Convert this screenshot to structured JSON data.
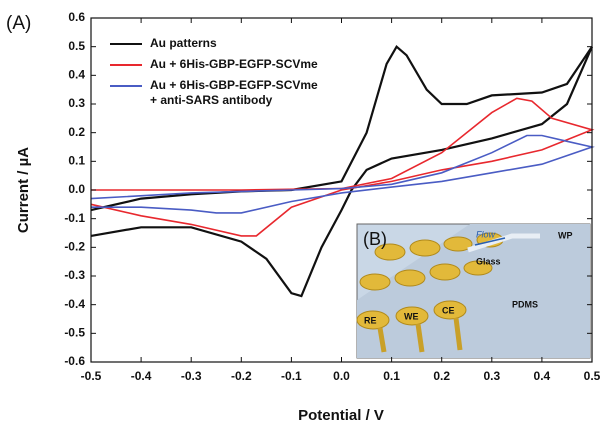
{
  "chart_data": {
    "type": "line",
    "panel_label": "(A)",
    "xlabel": "Potential / V",
    "ylabel": "Current / µA",
    "xlim": [
      -0.5,
      0.5
    ],
    "ylim": [
      -0.6,
      0.6
    ],
    "xticks": [
      -0.5,
      -0.4,
      -0.3,
      -0.2,
      -0.1,
      {
        "value": 0,
        "label": "0.0"
      },
      0.1,
      0.2,
      0.3,
      0.4,
      0.5
    ],
    "yticks": [
      -0.6,
      -0.5,
      -0.4,
      -0.3,
      -0.2,
      -0.1,
      {
        "value": 0,
        "label": "0.0"
      },
      0.1,
      0.2,
      0.3,
      0.4,
      0.5,
      0.6
    ],
    "legend": "upper-left",
    "series": [
      {
        "name": "Au patterns",
        "color": "#111111",
        "x": [
          -0.5,
          -0.4,
          -0.3,
          -0.2,
          -0.1,
          0.0,
          0.05,
          0.09,
          0.11,
          0.13,
          0.17,
          0.2,
          0.25,
          0.3,
          0.4,
          0.45,
          0.5,
          0.45,
          0.4,
          0.3,
          0.2,
          0.1,
          0.05,
          0.02,
          0.0,
          -0.04,
          -0.08,
          -0.1,
          -0.15,
          -0.2,
          -0.3,
          -0.4,
          -0.5
        ],
        "values": [
          -0.07,
          -0.03,
          -0.015,
          -0.005,
          0.0,
          0.03,
          0.2,
          0.44,
          0.5,
          0.47,
          0.35,
          0.3,
          0.3,
          0.33,
          0.34,
          0.37,
          0.5,
          0.3,
          0.23,
          0.18,
          0.14,
          0.11,
          0.07,
          0.0,
          -0.07,
          -0.2,
          -0.37,
          -0.36,
          -0.24,
          -0.18,
          -0.13,
          -0.13,
          -0.16
        ]
      },
      {
        "name": "Au + 6His-GBP-EGFP-SCVme",
        "color": "#e8282e",
        "x": [
          -0.5,
          -0.2,
          0.0,
          0.1,
          0.2,
          0.3,
          0.35,
          0.38,
          0.42,
          0.5,
          0.4,
          0.3,
          0.2,
          0.1,
          0.0,
          -0.1,
          -0.17,
          -0.2,
          -0.3,
          -0.4,
          -0.5
        ],
        "values": [
          0.0,
          0.0,
          0.005,
          0.04,
          0.13,
          0.27,
          0.32,
          0.31,
          0.25,
          0.21,
          0.14,
          0.1,
          0.07,
          0.03,
          0.0,
          -0.06,
          -0.16,
          -0.16,
          -0.12,
          -0.09,
          -0.05
        ]
      },
      {
        "name": "Au + 6His-GBP-EGFP-SCVme + anti-SARS antibody",
        "color": "#4a5cc4",
        "x": [
          -0.5,
          -0.3,
          -0.1,
          0.0,
          0.1,
          0.2,
          0.3,
          0.37,
          0.4,
          0.45,
          0.5,
          0.4,
          0.3,
          0.2,
          0.1,
          0.0,
          -0.1,
          -0.2,
          -0.25,
          -0.3,
          -0.4,
          -0.5
        ],
        "values": [
          -0.03,
          -0.01,
          0.0,
          0.005,
          0.02,
          0.06,
          0.13,
          0.19,
          0.19,
          0.17,
          0.15,
          0.09,
          0.06,
          0.03,
          0.01,
          -0.01,
          -0.04,
          -0.08,
          -0.08,
          -0.07,
          -0.06,
          -0.06
        ]
      }
    ],
    "inset": {
      "label": "(B)",
      "flow": "Flow",
      "wp": "WP",
      "glass": "Glass",
      "pdms": "PDMS",
      "re": "RE",
      "we": "WE",
      "ce": "CE"
    }
  }
}
